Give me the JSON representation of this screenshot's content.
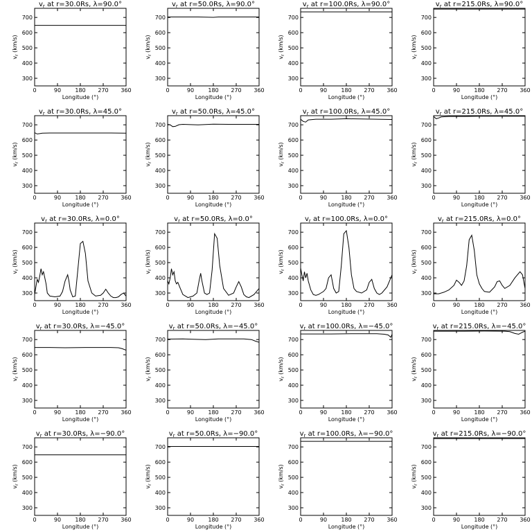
{
  "chart_data": {
    "type": "line",
    "layout": {
      "rows": 5,
      "cols": 4
    },
    "xlabel": "Longitude (°)",
    "ylabel_html": "v_r (km/s)",
    "ylabel_main": "v",
    "ylabel_sub": "r",
    "ylabel_unit": "(km/s)",
    "xlim": [
      0,
      360
    ],
    "ylim": [
      250,
      760
    ],
    "xticks": [
      0,
      90,
      180,
      270,
      360
    ],
    "yticks": [
      300,
      400,
      500,
      600,
      700
    ],
    "panels": [
      {
        "title_lead": "v",
        "title_sub": "r",
        "title_rest": " at r=30.0Rs,  λ=90.0°",
        "x": [
          0,
          360
        ],
        "y": [
          648,
          648
        ]
      },
      {
        "title_lead": "v",
        "title_sub": "r",
        "title_rest": " at r=50.0Rs,  λ=90.0°",
        "x": [
          0,
          120,
          180,
          200,
          360
        ],
        "y": [
          703,
          703,
          701,
          703,
          703
        ]
      },
      {
        "title_lead": "v",
        "title_sub": "r",
        "title_rest": " at r=100.0Rs,  λ=90.0°",
        "x": [
          0,
          360
        ],
        "y": [
          737,
          737
        ]
      },
      {
        "title_lead": "v",
        "title_sub": "r",
        "title_rest": " at r=215.0Rs,  λ=90.0°",
        "x": [
          0,
          360
        ],
        "y": [
          755,
          755
        ]
      },
      {
        "title_lead": "v",
        "title_sub": "r",
        "title_rest": " at r=30.0Rs,  λ=45.0°",
        "x": [
          0,
          10,
          20,
          30,
          60,
          120,
          200,
          300,
          360
        ],
        "y": [
          648,
          640,
          642,
          645,
          646,
          646,
          646,
          646,
          645
        ]
      },
      {
        "title_lead": "v",
        "title_sub": "r",
        "title_rest": " at r=50.0Rs,  λ=45.0°",
        "x": [
          0,
          10,
          20,
          30,
          45,
          60,
          120,
          180,
          240,
          360
        ],
        "y": [
          703,
          700,
          688,
          690,
          701,
          703,
          700,
          704,
          703,
          703
        ]
      },
      {
        "title_lead": "v",
        "title_sub": "r",
        "title_rest": " at r=100.0Rs,  λ=45.0°",
        "x": [
          0,
          10,
          20,
          30,
          60,
          120,
          180,
          240,
          300,
          360
        ],
        "y": [
          737,
          722,
          718,
          732,
          737,
          737,
          740,
          738,
          737,
          735
        ]
      },
      {
        "title_lead": "v",
        "title_sub": "r",
        "title_rest": " at r=215.0Rs,  λ=45.0°",
        "x": [
          0,
          10,
          20,
          30,
          60,
          120,
          180,
          240,
          300,
          360
        ],
        "y": [
          755,
          740,
          745,
          752,
          755,
          755,
          757,
          757,
          757,
          757
        ]
      },
      {
        "title_lead": "v",
        "title_sub": "r",
        "title_rest": " at r=30.0Rs,  λ=0.0°",
        "x": [
          0,
          5,
          10,
          15,
          20,
          25,
          30,
          35,
          40,
          45,
          50,
          60,
          80,
          100,
          110,
          120,
          130,
          135,
          140,
          150,
          160,
          170,
          180,
          190,
          200,
          210,
          225,
          240,
          260,
          270,
          280,
          290,
          300,
          310,
          320,
          330,
          340,
          350,
          360
        ],
        "y": [
          290,
          340,
          390,
          370,
          410,
          460,
          420,
          440,
          400,
          360,
          300,
          280,
          275,
          280,
          310,
          380,
          420,
          380,
          320,
          275,
          280,
          450,
          625,
          640,
          560,
          380,
          300,
          280,
          285,
          300,
          325,
          300,
          280,
          270,
          270,
          275,
          290,
          300,
          280
        ]
      },
      {
        "title_lead": "v",
        "title_sub": "r",
        "title_rest": " at r=50.0Rs,  λ=0.0°",
        "x": [
          0,
          5,
          10,
          15,
          20,
          25,
          30,
          35,
          40,
          50,
          60,
          80,
          100,
          115,
          125,
          130,
          135,
          145,
          155,
          165,
          175,
          185,
          195,
          205,
          220,
          240,
          260,
          270,
          280,
          290,
          300,
          310,
          320,
          340,
          360
        ],
        "y": [
          380,
          360,
          400,
          460,
          420,
          440,
          380,
          360,
          370,
          330,
          290,
          270,
          280,
          300,
          390,
          430,
          380,
          300,
          290,
          300,
          450,
          690,
          660,
          480,
          330,
          285,
          300,
          340,
          375,
          340,
          290,
          275,
          270,
          290,
          330
        ]
      },
      {
        "title_lead": "v",
        "title_sub": "r",
        "title_rest": " at r=100.0Rs,  λ=0.0°",
        "x": [
          0,
          5,
          10,
          15,
          20,
          25,
          30,
          40,
          50,
          60,
          70,
          80,
          90,
          100,
          110,
          120,
          130,
          140,
          150,
          160,
          170,
          180,
          190,
          200,
          210,
          220,
          240,
          260,
          270,
          280,
          290,
          300,
          310,
          320,
          340,
          360
        ],
        "y": [
          465,
          420,
          380,
          440,
          400,
          430,
          380,
          320,
          290,
          285,
          290,
          300,
          310,
          330,
          400,
          420,
          330,
          300,
          310,
          480,
          690,
          710,
          600,
          420,
          330,
          310,
          300,
          320,
          370,
          390,
          330,
          300,
          290,
          300,
          340,
          420
        ]
      },
      {
        "title_lead": "v",
        "title_sub": "r",
        "title_rest": " at r=215.0Rs,  λ=0.0°",
        "x": [
          0,
          20,
          40,
          60,
          80,
          90,
          100,
          110,
          120,
          130,
          140,
          150,
          160,
          170,
          180,
          190,
          200,
          220,
          240,
          250,
          260,
          270,
          280,
          300,
          320,
          340,
          350,
          360
        ],
        "y": [
          295,
          295,
          305,
          320,
          350,
          385,
          370,
          350,
          380,
          480,
          650,
          680,
          580,
          420,
          360,
          330,
          310,
          305,
          340,
          375,
          380,
          350,
          330,
          350,
          400,
          440,
          420,
          330
        ]
      },
      {
        "title_lead": "v",
        "title_sub": "r",
        "title_rest": " at r=30.0Rs,  λ=−45.0°",
        "x": [
          0,
          60,
          120,
          200,
          300,
          330,
          345,
          360
        ],
        "y": [
          648,
          648,
          646,
          648,
          648,
          646,
          640,
          630
        ]
      },
      {
        "title_lead": "v",
        "title_sub": "r",
        "title_rest": " at r=50.0Rs,  λ=−45.0°",
        "x": [
          0,
          60,
          100,
          150,
          200,
          300,
          330,
          345,
          360
        ],
        "y": [
          703,
          704,
          702,
          700,
          704,
          704,
          700,
          690,
          682
        ]
      },
      {
        "title_lead": "v",
        "title_sub": "r",
        "title_rest": " at r=100.0Rs,  λ=−45.0°",
        "x": [
          0,
          60,
          120,
          200,
          300,
          330,
          345,
          355,
          360
        ],
        "y": [
          737,
          737,
          737,
          738,
          738,
          735,
          730,
          715,
          735
        ]
      },
      {
        "title_lead": "v",
        "title_sub": "r",
        "title_rest": " at r=215.0Rs,  λ=−45.0°",
        "x": [
          0,
          60,
          120,
          200,
          280,
          300,
          320,
          335,
          350,
          360
        ],
        "y": [
          755,
          755,
          755,
          756,
          755,
          752,
          740,
          735,
          748,
          755
        ]
      },
      {
        "title_lead": "v",
        "title_sub": "r",
        "title_rest": " at r=30.0Rs,  λ=−90.0°",
        "x": [
          0,
          360
        ],
        "y": [
          648,
          648
        ]
      },
      {
        "title_lead": "v",
        "title_sub": "r",
        "title_rest": " at r=50.0Rs,  λ=−90.0°",
        "x": [
          0,
          360
        ],
        "y": [
          703,
          703
        ]
      },
      {
        "title_lead": "v",
        "title_sub": "r",
        "title_rest": " at r=100.0Rs,  λ=−90.0°",
        "x": [
          0,
          360
        ],
        "y": [
          737,
          737
        ]
      },
      {
        "title_lead": "v",
        "title_sub": "r",
        "title_rest": " at r=215.0Rs,  λ=−90.0°",
        "x": [
          0,
          360
        ],
        "y": [
          755,
          755
        ]
      }
    ]
  }
}
